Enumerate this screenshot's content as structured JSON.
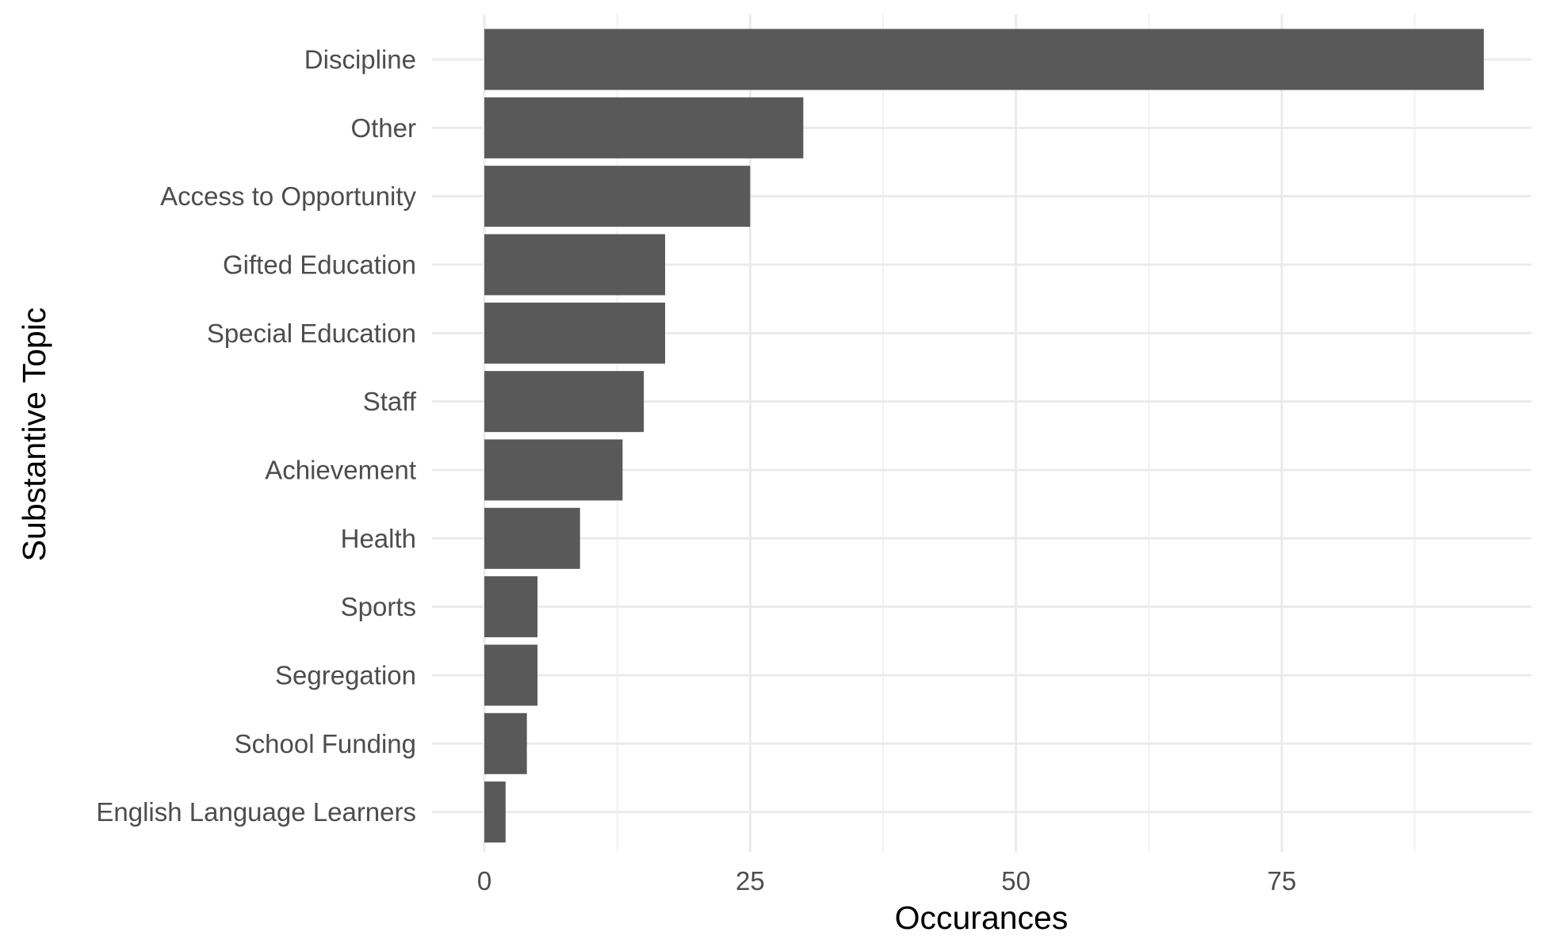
{
  "chart_data": {
    "type": "bar",
    "orientation": "horizontal",
    "title": "",
    "xlabel": "Occurances",
    "ylabel": "Substantive Topic",
    "categories": [
      "Discipline",
      "Other",
      "Access to Opportunity",
      "Gifted Education",
      "Special Education",
      "Staff",
      "Achievement",
      "Health",
      "Sports",
      "Segregation",
      "School Funding",
      "English Language Learners"
    ],
    "values": [
      94,
      30,
      25,
      17,
      17,
      15,
      13,
      9,
      5,
      5,
      4,
      2
    ],
    "xlim": [
      0,
      98
    ],
    "x_ticks": [
      0,
      25,
      50,
      75
    ],
    "x_tick_labels": [
      "0",
      "25",
      "50",
      "75"
    ],
    "grid": true,
    "legend": "none",
    "colors": {
      "bar": "#595959",
      "grid_major": "#ebebeb",
      "grid_minor": "#f2f2f2",
      "tick_text": "#4d4d4d",
      "title_text": "#000000"
    }
  }
}
